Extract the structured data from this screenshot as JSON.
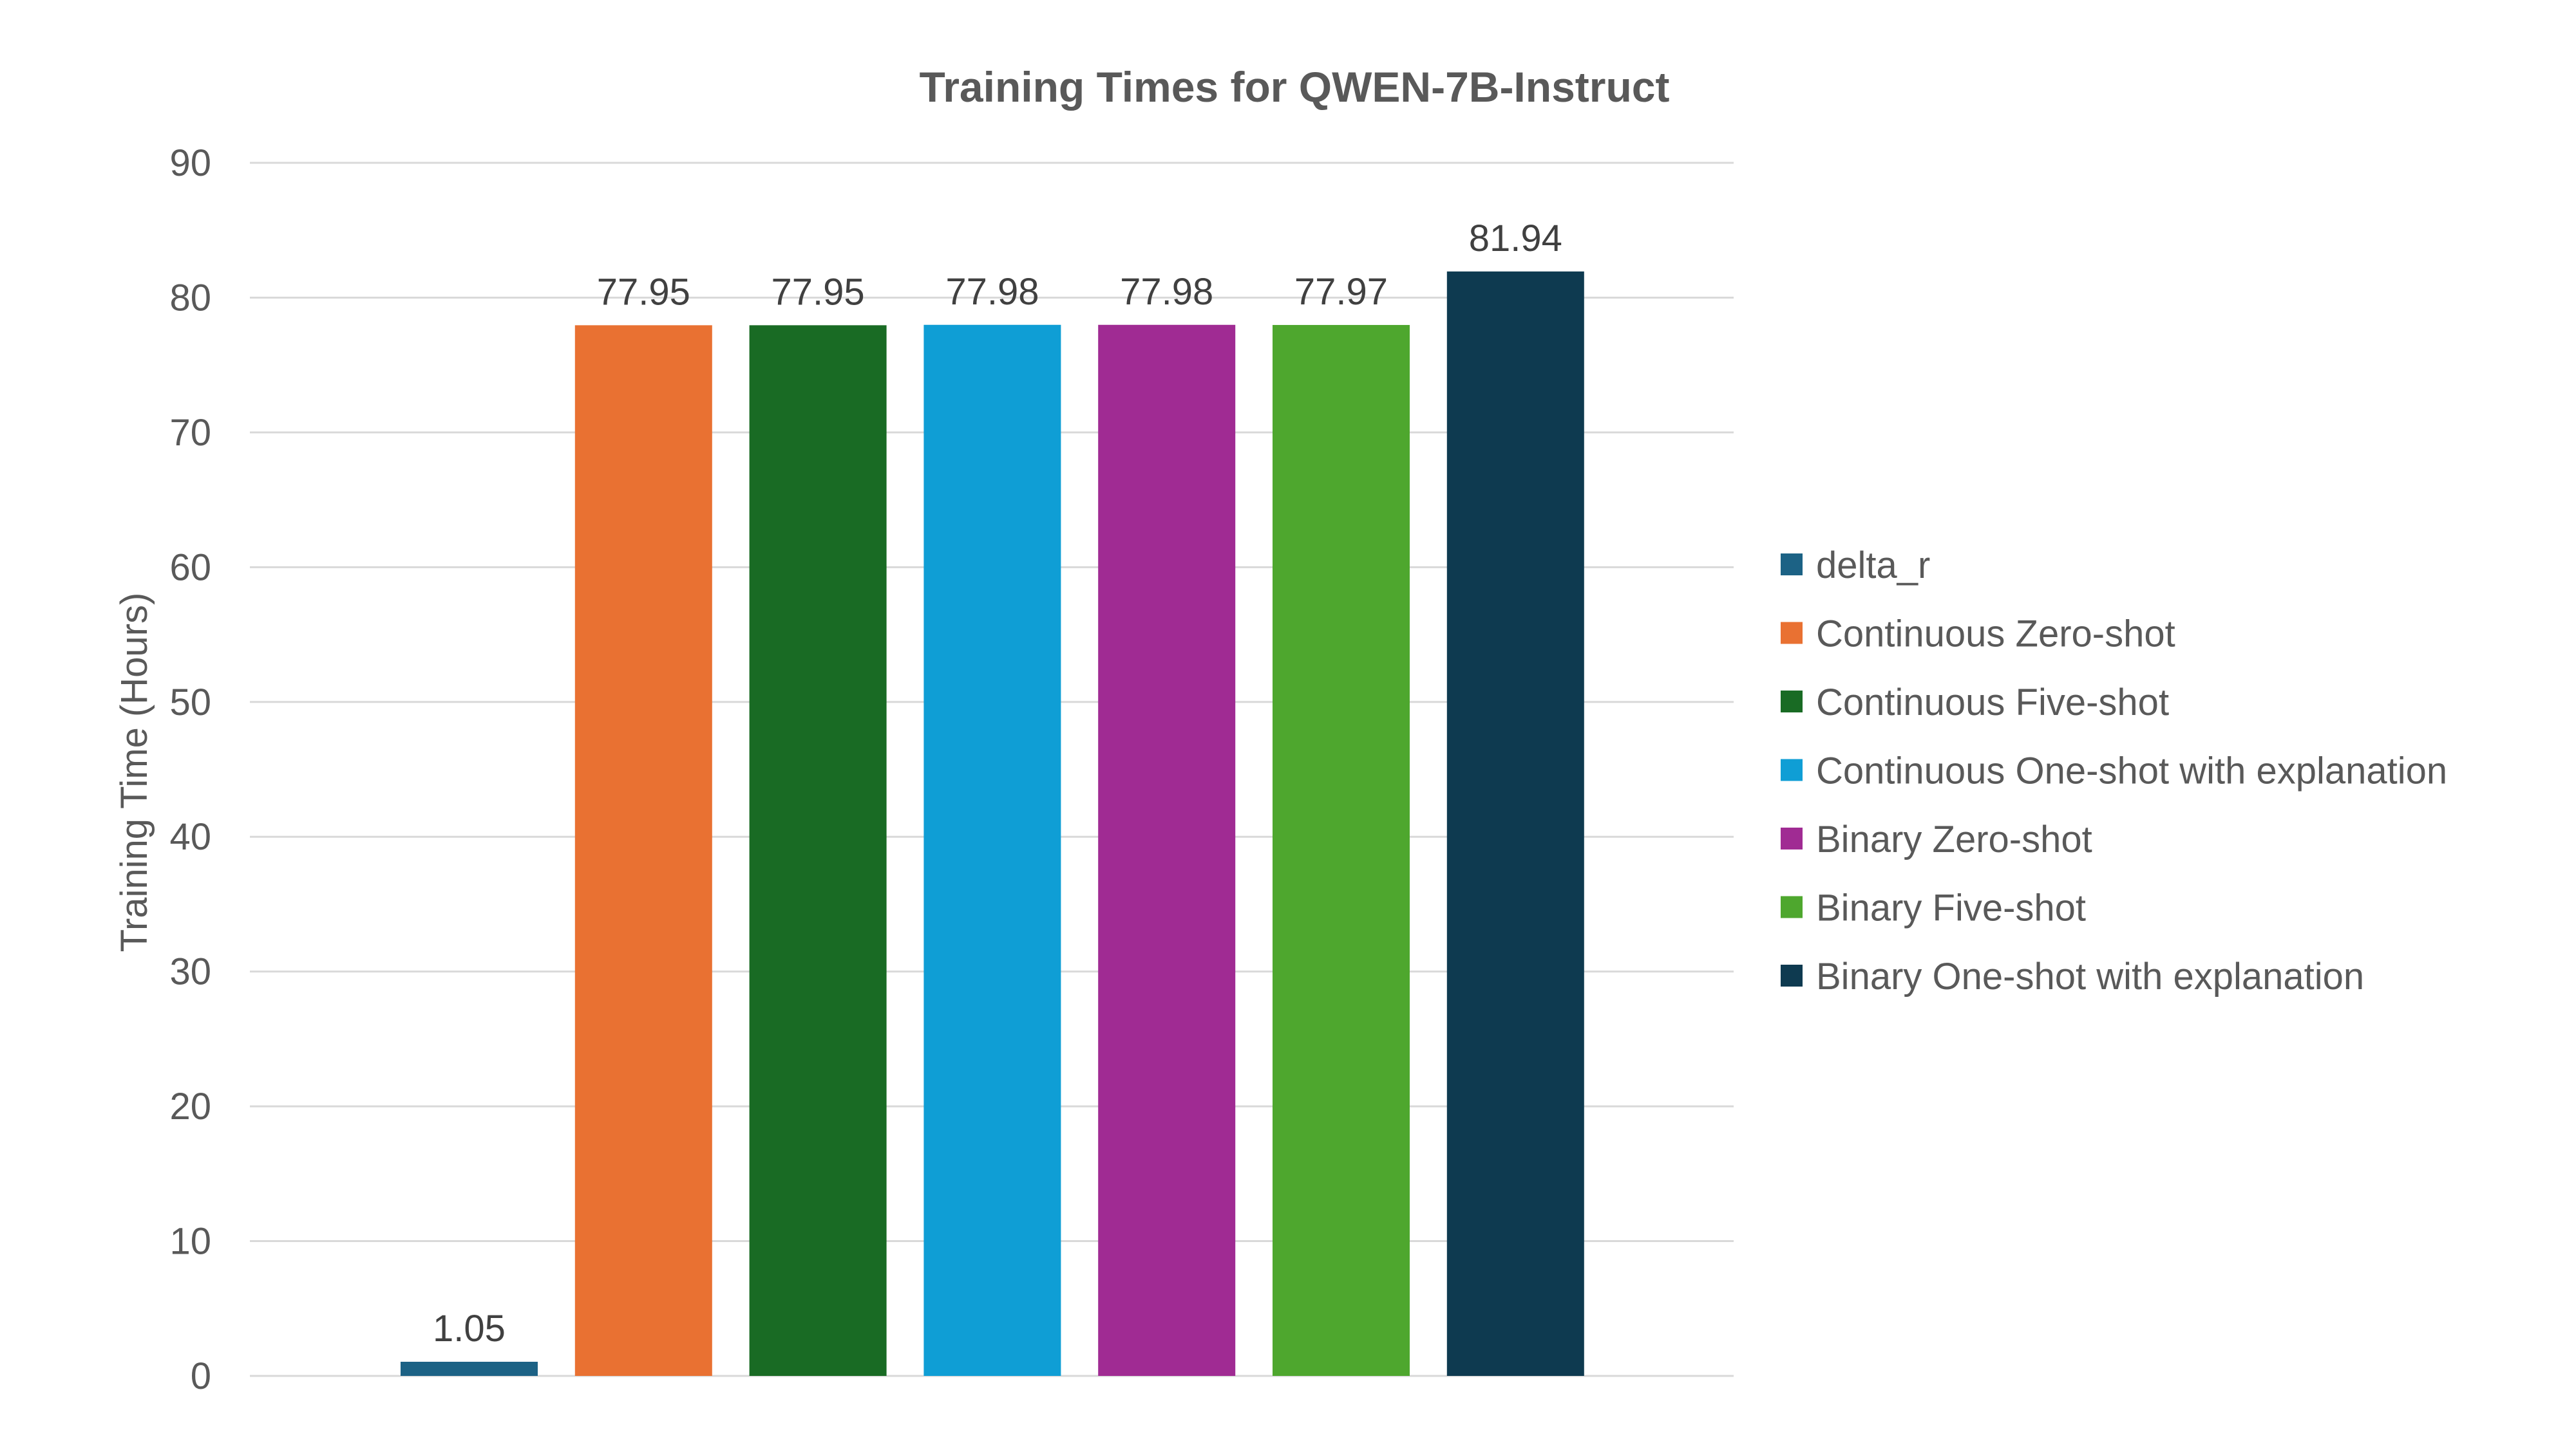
{
  "chart_data": {
    "type": "bar",
    "title": "Training Times for QWEN-7B-Instruct",
    "xlabel": "",
    "ylabel": "Training Time (Hours)",
    "ylim": [
      0,
      90
    ],
    "yticks": [
      0,
      10,
      20,
      30,
      40,
      50,
      60,
      70,
      80,
      90
    ],
    "grid": true,
    "legend_position": "right",
    "series": [
      {
        "name": "delta_r",
        "value": 1.05,
        "label": "1.05",
        "color": "#1c6285"
      },
      {
        "name": "Continuous Zero-shot",
        "value": 77.95,
        "label": "77.95",
        "color": "#e97132"
      },
      {
        "name": "Continuous Five-shot",
        "value": 77.95,
        "label": "77.95",
        "color": "#196b24"
      },
      {
        "name": "Continuous One-shot with explanation",
        "value": 77.98,
        "label": "77.98",
        "color": "#0f9ed5"
      },
      {
        "name": "Binary Zero-shot",
        "value": 77.98,
        "label": "77.98",
        "color": "#a02b93"
      },
      {
        "name": "Binary Five-shot",
        "value": 77.97,
        "label": "77.97",
        "color": "#4ea72e"
      },
      {
        "name": "Binary One-shot with explanation",
        "value": 81.94,
        "label": "81.94",
        "color": "#0e3a50"
      }
    ]
  }
}
